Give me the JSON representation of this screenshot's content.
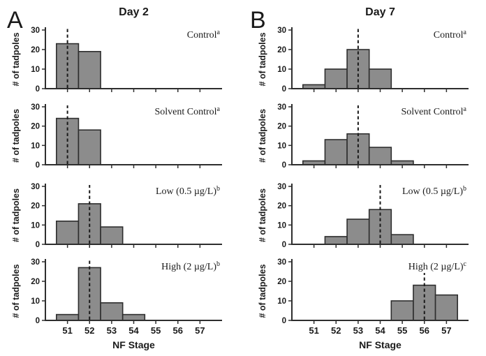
{
  "figure": {
    "panel_letters": [
      "A",
      "B"
    ],
    "column_titles": [
      "Day 2",
      "Day 7"
    ],
    "xlabel": "NF Stage",
    "ylabel": "# of tadpoles",
    "xticks": [
      51,
      52,
      53,
      54,
      55,
      56,
      57
    ],
    "yticks": [
      0,
      10,
      20,
      30
    ],
    "xlim": [
      50,
      58
    ],
    "ylim": [
      0,
      30
    ]
  },
  "chart_data": [
    {
      "type": "bar",
      "group": "Day 2",
      "treatment": "Control",
      "superscript": "a",
      "x": [
        51,
        52
      ],
      "values": [
        23,
        19
      ],
      "median_nf_stage": 51,
      "xlabel": "NF Stage",
      "ylabel": "# of tadpoles",
      "xlim": [
        50,
        58
      ],
      "ylim": [
        0,
        30
      ],
      "xticks": [
        51,
        52,
        53,
        54,
        55,
        56,
        57
      ],
      "yticks": [
        0,
        10,
        20,
        30
      ]
    },
    {
      "type": "bar",
      "group": "Day 2",
      "treatment": "Solvent Control",
      "superscript": "a",
      "x": [
        51,
        52
      ],
      "values": [
        24,
        18
      ],
      "median_nf_stage": 51,
      "xlabel": "NF Stage",
      "ylabel": "# of tadpoles",
      "xlim": [
        50,
        58
      ],
      "ylim": [
        0,
        30
      ],
      "xticks": [
        51,
        52,
        53,
        54,
        55,
        56,
        57
      ],
      "yticks": [
        0,
        10,
        20,
        30
      ]
    },
    {
      "type": "bar",
      "group": "Day 2",
      "treatment": "Low (0.5 µg/L)",
      "superscript": "b",
      "x": [
        51,
        52,
        53
      ],
      "values": [
        12,
        21,
        9
      ],
      "median_nf_stage": 52,
      "xlabel": "NF Stage",
      "ylabel": "# of tadpoles",
      "xlim": [
        50,
        58
      ],
      "ylim": [
        0,
        30
      ],
      "xticks": [
        51,
        52,
        53,
        54,
        55,
        56,
        57
      ],
      "yticks": [
        0,
        10,
        20,
        30
      ]
    },
    {
      "type": "bar",
      "group": "Day 2",
      "treatment": "High (2 µg/L)",
      "superscript": "b",
      "x": [
        51,
        52,
        53,
        54
      ],
      "values": [
        3,
        27,
        9,
        3
      ],
      "median_nf_stage": 52,
      "xlabel": "NF Stage",
      "ylabel": "# of tadpoles",
      "xlim": [
        50,
        58
      ],
      "ylim": [
        0,
        30
      ],
      "xticks": [
        51,
        52,
        53,
        54,
        55,
        56,
        57
      ],
      "yticks": [
        0,
        10,
        20,
        30
      ]
    },
    {
      "type": "bar",
      "group": "Day 7",
      "treatment": "Control",
      "superscript": "a",
      "x": [
        51,
        52,
        53,
        54
      ],
      "values": [
        2,
        10,
        20,
        10
      ],
      "median_nf_stage": 53,
      "xlabel": "NF Stage",
      "ylabel": "# of tadpoles",
      "xlim": [
        50,
        58
      ],
      "ylim": [
        0,
        30
      ],
      "xticks": [
        51,
        52,
        53,
        54,
        55,
        56,
        57
      ],
      "yticks": [
        0,
        10,
        20,
        30
      ]
    },
    {
      "type": "bar",
      "group": "Day 7",
      "treatment": "Solvent Control",
      "superscript": "a",
      "x": [
        51,
        52,
        53,
        54,
        55
      ],
      "values": [
        2,
        13,
        16,
        9,
        2
      ],
      "median_nf_stage": 53,
      "xlabel": "NF Stage",
      "ylabel": "# of tadpoles",
      "xlim": [
        50,
        58
      ],
      "ylim": [
        0,
        30
      ],
      "xticks": [
        51,
        52,
        53,
        54,
        55,
        56,
        57
      ],
      "yticks": [
        0,
        10,
        20,
        30
      ]
    },
    {
      "type": "bar",
      "group": "Day 7",
      "treatment": "Low (0.5 µg/L)",
      "superscript": "b",
      "x": [
        52,
        53,
        54,
        55
      ],
      "values": [
        4,
        13,
        18,
        5
      ],
      "median_nf_stage": 54,
      "xlabel": "NF Stage",
      "ylabel": "# of tadpoles",
      "xlim": [
        50,
        58
      ],
      "ylim": [
        0,
        30
      ],
      "xticks": [
        51,
        52,
        53,
        54,
        55,
        56,
        57
      ],
      "yticks": [
        0,
        10,
        20,
        30
      ]
    },
    {
      "type": "bar",
      "group": "Day 7",
      "treatment": "High (2 µg/L)",
      "superscript": "c",
      "x": [
        55,
        56,
        57
      ],
      "values": [
        10,
        18,
        13
      ],
      "median_nf_stage": 56,
      "xlabel": "NF Stage",
      "ylabel": "# of tadpoles",
      "xlim": [
        50,
        58
      ],
      "ylim": [
        0,
        30
      ],
      "xticks": [
        51,
        52,
        53,
        54,
        55,
        56,
        57
      ],
      "yticks": [
        0,
        10,
        20,
        30
      ]
    }
  ],
  "colors": {
    "background": "#ffffff",
    "bar_fill": "#8c8c8c",
    "bar_stroke": "#2e2e2e",
    "axis": "#2e2e2e",
    "median_line": "#1a1a1a",
    "text": "#1a1a1a"
  }
}
